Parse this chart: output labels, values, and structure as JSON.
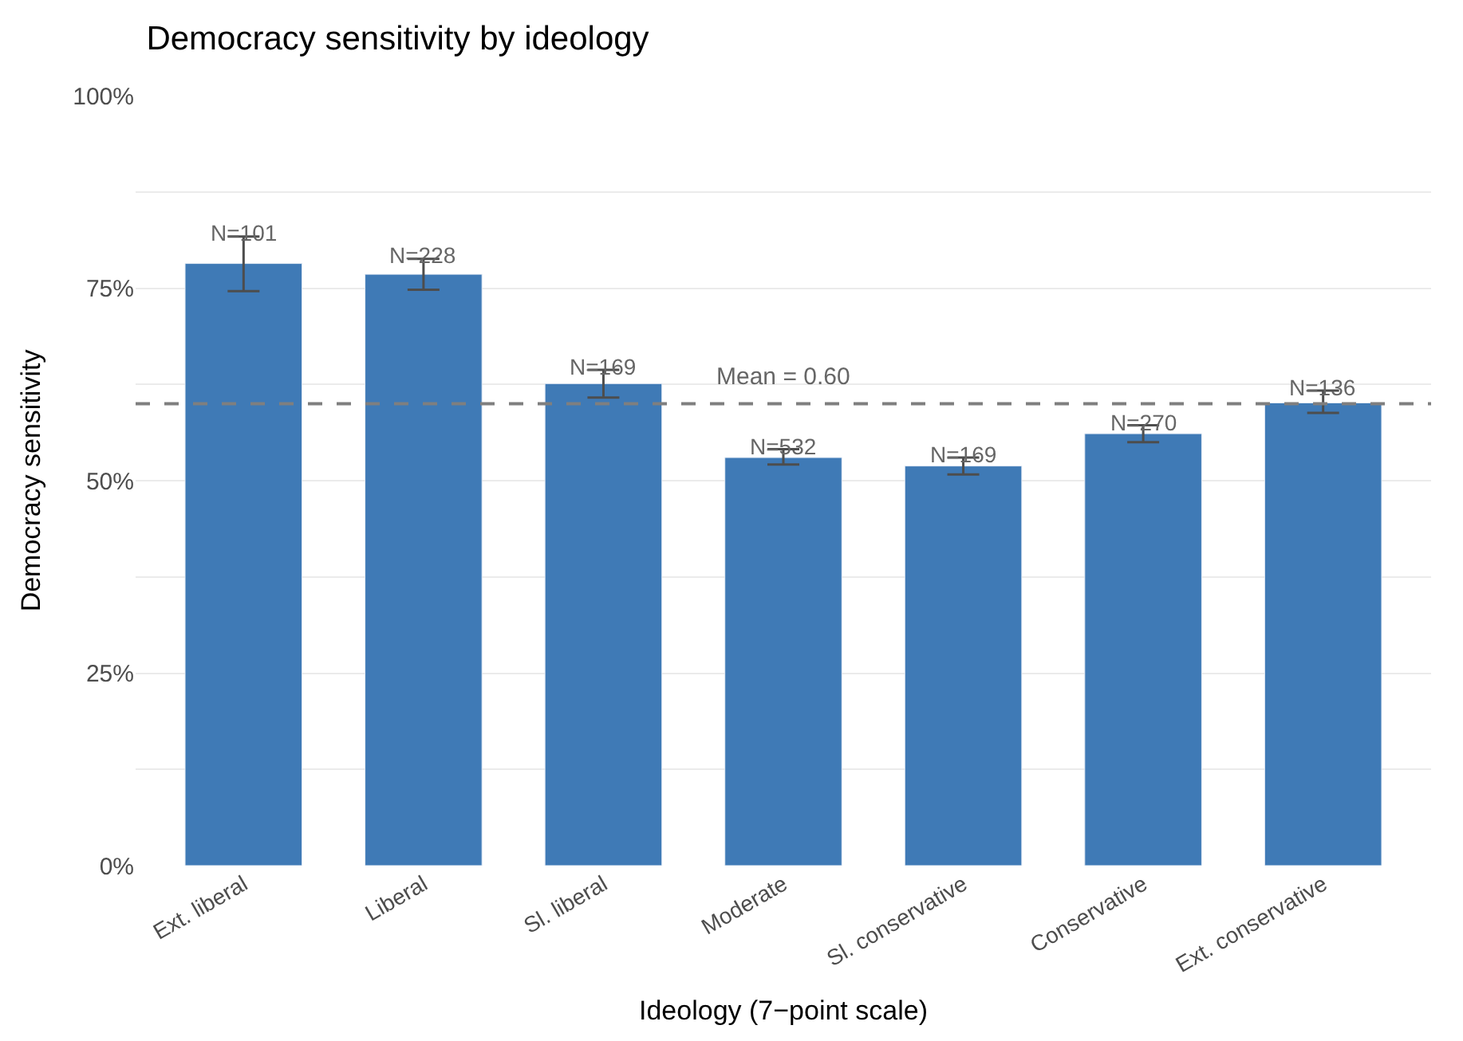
{
  "chart_data": {
    "type": "bar",
    "title": "Democracy sensitivity by ideology",
    "xlabel": "Ideology (7−point scale)",
    "ylabel": "Democracy sensitivity",
    "categories": [
      "Ext. liberal",
      "Liberal",
      "Sl. liberal",
      "Moderate",
      "Sl. conservative",
      "Conservative",
      "Ext. conservative"
    ],
    "values": [
      0.782,
      0.768,
      0.626,
      0.53,
      0.519,
      0.561,
      0.601
    ],
    "errors": [
      [
        0.746,
        0.817
      ],
      [
        0.748,
        0.788
      ],
      [
        0.608,
        0.644
      ],
      [
        0.521,
        0.541
      ],
      [
        0.508,
        0.53
      ],
      [
        0.55,
        0.572
      ],
      [
        0.588,
        0.617
      ]
    ],
    "annotations": [
      {
        "text": "N=101",
        "x": "Ext. liberal",
        "y": 0.817
      },
      {
        "text": "N=228",
        "x": "Liberal",
        "y": 0.788
      },
      {
        "text": "N=169",
        "x": "Sl. liberal",
        "y": 0.644
      },
      {
        "text": "N=532",
        "x": "Moderate",
        "y": 0.541
      },
      {
        "text": "N=169",
        "x": "Sl. conservative",
        "y": 0.53
      },
      {
        "text": "N=270",
        "x": "Conservative",
        "y": 0.572
      },
      {
        "text": "N=136",
        "x": "Ext. conservative",
        "y": 0.617
      }
    ],
    "color": "#3f7ab6",
    "ylim": [
      0,
      1
    ],
    "yticks": [
      {
        "value": 0,
        "label": "0%"
      },
      {
        "value": 0.125,
        "label": null
      },
      {
        "value": 0.25,
        "label": "25%"
      },
      {
        "value": 0.375,
        "label": null
      },
      {
        "value": 0.5,
        "label": "50%"
      },
      {
        "value": 0.625,
        "label": null
      },
      {
        "value": 0.75,
        "label": "75%"
      },
      {
        "value": 0.875,
        "label": null
      },
      {
        "value": 1,
        "label": "100%"
      }
    ],
    "ref_lines": [
      {
        "axis": "y",
        "value": 0.6,
        "label": "Mean = 0.60",
        "color": "#7f7f7f",
        "line_style": "dashed"
      }
    ],
    "grid": "y"
  }
}
